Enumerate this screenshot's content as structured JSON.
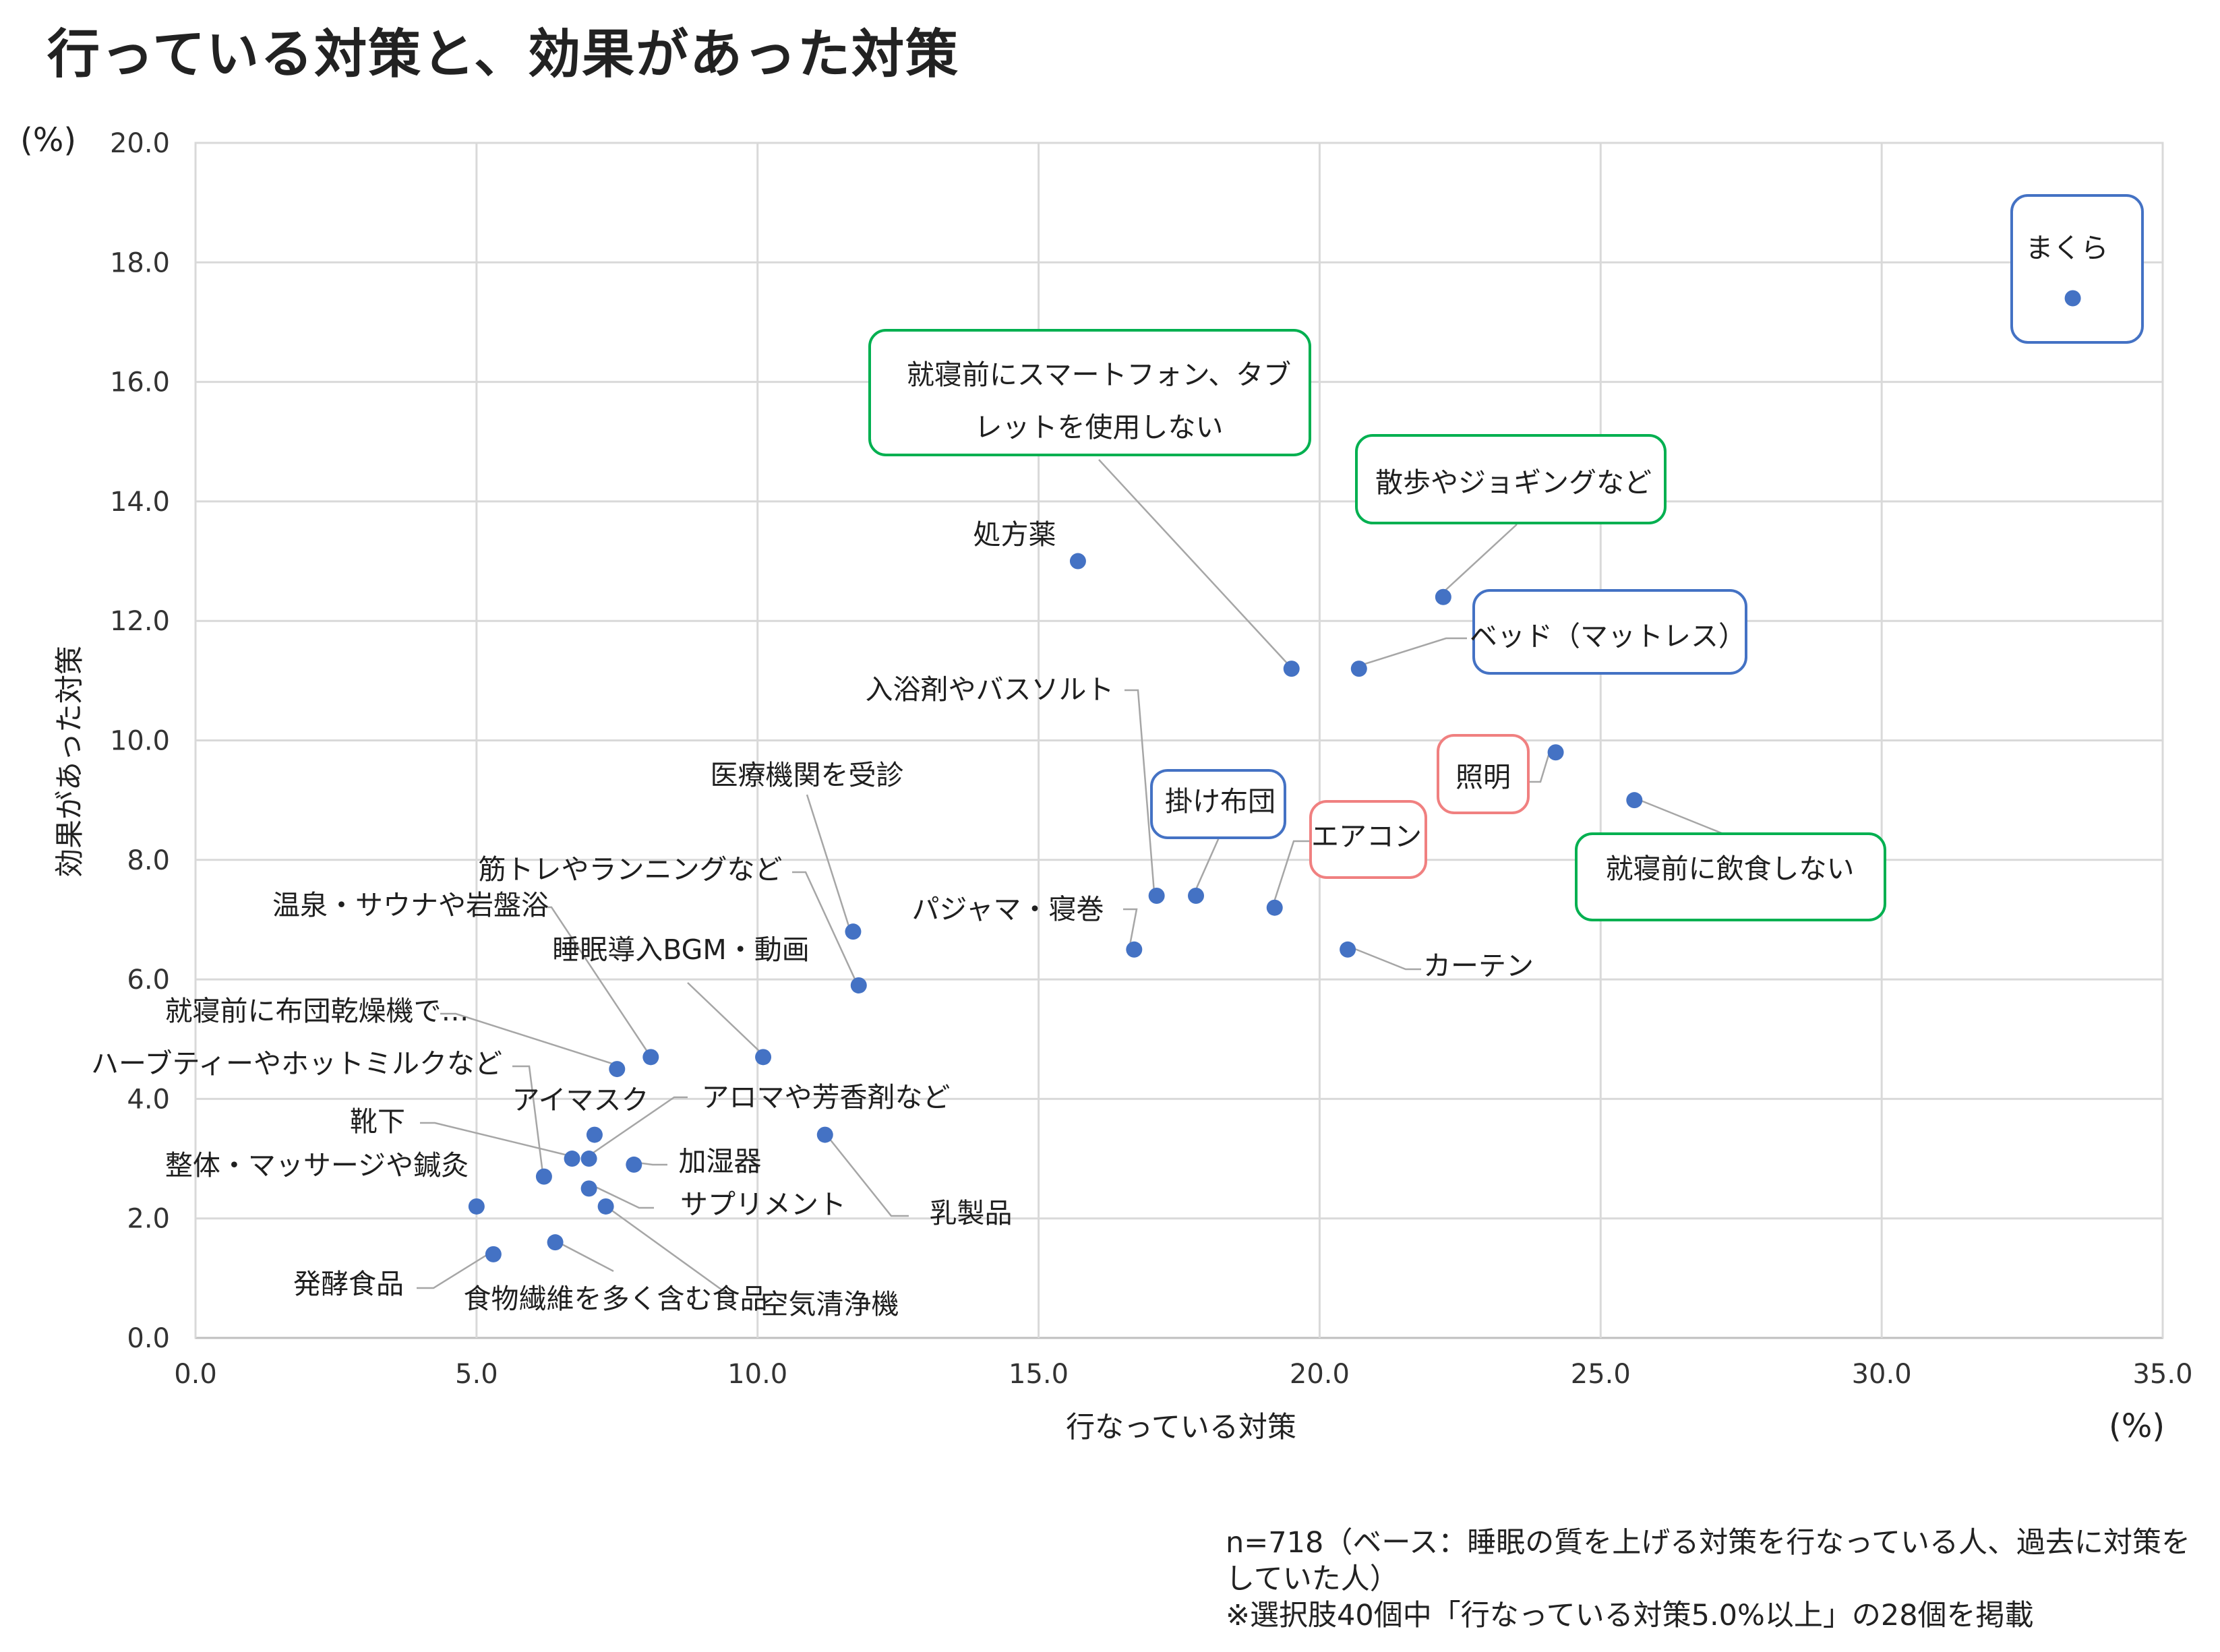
{
  "title": "行っている対策と、効果があった対策",
  "chart_data": {
    "type": "scatter",
    "xlabel": "行なっている対策",
    "ylabel": "効果があった対策",
    "x_unit": "(%)",
    "y_unit": "(%)",
    "xlim": [
      0,
      35
    ],
    "ylim": [
      0,
      20
    ],
    "x_ticks": [
      "0.0",
      "5.0",
      "10.0",
      "15.0",
      "20.0",
      "25.0",
      "30.0",
      "35.0"
    ],
    "y_ticks": [
      "0.0",
      "2.0",
      "4.0",
      "6.0",
      "8.0",
      "10.0",
      "12.0",
      "14.0",
      "16.0",
      "18.0",
      "20.0"
    ],
    "grid": true,
    "marker_color": "#4472c4",
    "points": [
      {
        "label": "まくら",
        "x": 33.4,
        "y": 17.4,
        "box": "#4472c4"
      },
      {
        "label": "就寝前にスマートフォン、タブレットを使用しない",
        "x": 19.5,
        "y": 11.2,
        "box": "#00b050"
      },
      {
        "label": "散歩やジョギングなど",
        "x": 22.2,
        "y": 12.4,
        "box": "#00b050"
      },
      {
        "label": "ベッド（マットレス）",
        "x": 20.7,
        "y": 11.2,
        "box": "#4472c4"
      },
      {
        "label": "処方薬",
        "x": 15.7,
        "y": 13.0
      },
      {
        "label": "入浴剤やバスソルト",
        "x": 17.1,
        "y": 7.4
      },
      {
        "label": "照明",
        "x": 24.2,
        "y": 9.8,
        "box": "#f08080"
      },
      {
        "label": "就寝前に飲食しない",
        "x": 25.6,
        "y": 9.0,
        "box": "#00b050"
      },
      {
        "label": "掛け布団",
        "x": 17.8,
        "y": 7.4,
        "box": "#4472c4"
      },
      {
        "label": "エアコン",
        "x": 19.2,
        "y": 7.2,
        "box": "#f08080"
      },
      {
        "label": "医療機関を受診",
        "x": 11.7,
        "y": 6.8
      },
      {
        "label": "筋トレやランニングなど",
        "x": 11.8,
        "y": 5.9
      },
      {
        "label": "パジャマ・寝巻",
        "x": 16.7,
        "y": 6.5
      },
      {
        "label": "カーテン",
        "x": 20.5,
        "y": 6.5
      },
      {
        "label": "温泉・サウナや岩盤浴",
        "x": 8.1,
        "y": 4.7
      },
      {
        "label": "睡眠導入BGM・動画",
        "x": 10.1,
        "y": 4.7
      },
      {
        "label": "就寝前に布団乾燥機で…",
        "x": 7.5,
        "y": 4.5
      },
      {
        "label": "ハーブティーやホットミルクなど",
        "x": 6.2,
        "y": 2.7
      },
      {
        "label": "アイマスク",
        "x": 7.1,
        "y": 3.4
      },
      {
        "label": "アロマや芳香剤など",
        "x": 7.0,
        "y": 3.0
      },
      {
        "label": "靴下",
        "x": 6.7,
        "y": 3.0
      },
      {
        "label": "加湿器",
        "x": 7.8,
        "y": 2.9
      },
      {
        "label": "整体・マッサージや鍼灸",
        "x": 5.0,
        "y": 2.2
      },
      {
        "label": "サプリメント",
        "x": 7.0,
        "y": 2.5
      },
      {
        "label": "乳製品",
        "x": 11.2,
        "y": 3.4
      },
      {
        "label": "発酵食品",
        "x": 5.3,
        "y": 1.4
      },
      {
        "label": "食物繊維を多く含む食品",
        "x": 6.4,
        "y": 1.6
      },
      {
        "label": "空気清浄機",
        "x": 7.3,
        "y": 2.2
      }
    ]
  },
  "footnote": {
    "line1": "n=718（ベース：睡眠の質を上げる対策を行なっている人、過去に対策をしていた人）",
    "line2": "※選択肢40個中「行なっている対策5.0%以上」の28個を掲載"
  }
}
